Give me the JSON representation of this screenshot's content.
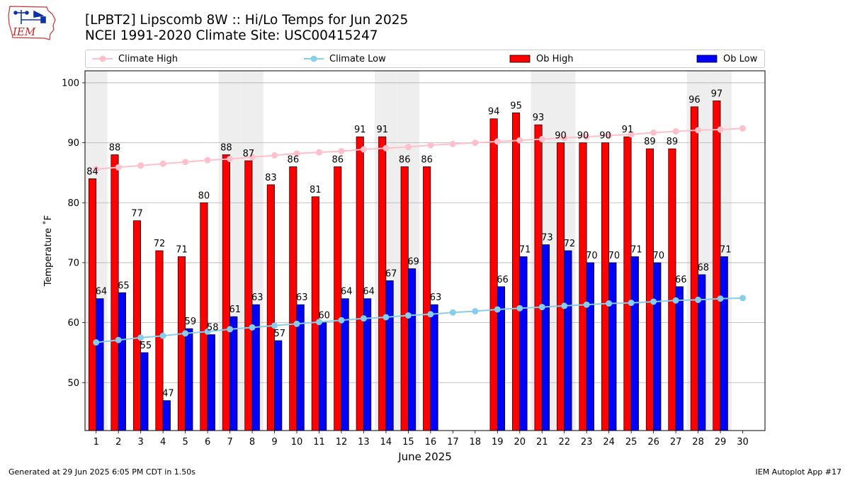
{
  "header": {
    "title_line1": "[LPBT2] Lipscomb 8W :: Hi/Lo Temps for Jun 2025",
    "title_line2": "NCEI 1991-2020 Climate Site: USC00415247",
    "logo_text": "IEM"
  },
  "footer": {
    "generated": "Generated at 29 Jun 2025 6:05 PM CDT in 1.50s",
    "app": "IEM Autoplot App #17"
  },
  "legend": {
    "climate_high": "Climate High",
    "climate_low": "Climate Low",
    "ob_high": "Ob High",
    "ob_low": "Ob Low"
  },
  "colors": {
    "ob_high": "#ff0000",
    "ob_low": "#0000ff",
    "climate_high": "#ffc0cb",
    "climate_low": "#87ceeb",
    "weekend_band": "#eeeeee",
    "grid": "#b0b0b0"
  },
  "chart_data": {
    "type": "bar",
    "xlabel": "June 2025",
    "ylabel": "Temperature ˚F",
    "ylim": [
      42,
      102
    ],
    "yticks": [
      50,
      60,
      70,
      80,
      90,
      100
    ],
    "grid": true,
    "legend_placement": "top",
    "categories": [
      1,
      2,
      3,
      4,
      5,
      6,
      7,
      8,
      9,
      10,
      11,
      12,
      13,
      14,
      15,
      16,
      17,
      18,
      19,
      20,
      21,
      22,
      23,
      24,
      25,
      26,
      27,
      28,
      29,
      30
    ],
    "weekend_days": [
      1,
      7,
      8,
      14,
      15,
      21,
      22,
      28,
      29
    ],
    "series": [
      {
        "name": "Ob High",
        "kind": "bar",
        "values": [
          84,
          88,
          77,
          72,
          71,
          80,
          88,
          87,
          83,
          86,
          81,
          86,
          91,
          91,
          86,
          86,
          null,
          null,
          94,
          95,
          93,
          90,
          90,
          90,
          91,
          89,
          89,
          96,
          97,
          null
        ]
      },
      {
        "name": "Ob Low",
        "kind": "bar",
        "values": [
          64,
          65,
          55,
          47,
          59,
          58,
          61,
          63,
          57,
          63,
          60,
          64,
          64,
          67,
          69,
          63,
          null,
          null,
          66,
          71,
          73,
          72,
          70,
          70,
          71,
          70,
          66,
          68,
          71,
          null
        ]
      },
      {
        "name": "Climate High",
        "kind": "line",
        "values": [
          85.6,
          85.9,
          86.2,
          86.5,
          86.8,
          87.1,
          87.3,
          87.6,
          87.9,
          88.2,
          88.4,
          88.6,
          88.9,
          89.1,
          89.3,
          89.6,
          89.8,
          90.0,
          90.2,
          90.4,
          90.6,
          90.8,
          91.0,
          91.2,
          91.4,
          91.7,
          91.9,
          92.1,
          92.2,
          92.4
        ]
      },
      {
        "name": "Climate Low",
        "kind": "line",
        "values": [
          56.7,
          57.1,
          57.5,
          57.8,
          58.2,
          58.5,
          58.9,
          59.2,
          59.5,
          59.8,
          60.1,
          60.4,
          60.7,
          60.9,
          61.2,
          61.4,
          61.7,
          61.9,
          62.2,
          62.4,
          62.6,
          62.8,
          63.0,
          63.2,
          63.3,
          63.5,
          63.7,
          63.8,
          64.0,
          64.1
        ]
      }
    ]
  }
}
